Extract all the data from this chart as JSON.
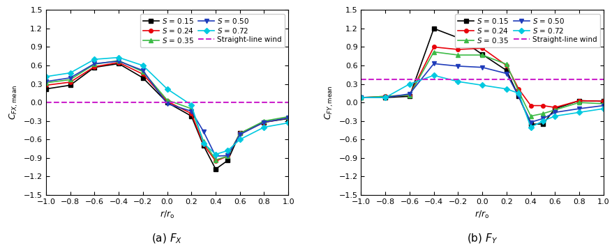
{
  "x_values": [
    -1.0,
    -0.8,
    -0.6,
    -0.4,
    -0.2,
    0.0,
    0.2,
    0.3,
    0.4,
    0.5,
    0.6,
    0.8,
    1.0
  ],
  "fx_S015": [
    0.22,
    0.28,
    0.57,
    0.63,
    0.4,
    0.0,
    -0.22,
    -0.7,
    -1.08,
    -0.94,
    -0.5,
    -0.32,
    -0.26
  ],
  "fx_S024": [
    0.28,
    0.33,
    0.58,
    0.65,
    0.46,
    0.02,
    -0.18,
    -0.68,
    -0.95,
    -0.87,
    -0.5,
    -0.32,
    -0.25
  ],
  "fx_S035": [
    0.32,
    0.37,
    0.62,
    0.68,
    0.5,
    0.04,
    -0.1,
    -0.63,
    -0.93,
    -0.87,
    -0.5,
    -0.3,
    -0.23
  ],
  "fx_S050": [
    0.34,
    0.4,
    0.63,
    0.67,
    0.52,
    -0.02,
    -0.14,
    -0.47,
    -0.87,
    -0.86,
    -0.52,
    -0.32,
    -0.25
  ],
  "fx_S072": [
    0.42,
    0.48,
    0.7,
    0.73,
    0.6,
    0.22,
    -0.04,
    -0.66,
    -0.84,
    -0.78,
    -0.6,
    -0.4,
    -0.33
  ],
  "fy_S015": [
    0.08,
    0.08,
    0.1,
    1.2,
    1.05,
    0.78,
    0.52,
    0.1,
    -0.35,
    -0.35,
    -0.1,
    0.03,
    0.02
  ],
  "fy_S024": [
    0.08,
    0.1,
    0.12,
    0.9,
    0.86,
    0.88,
    0.6,
    0.22,
    -0.05,
    -0.05,
    -0.08,
    0.03,
    0.02
  ],
  "fy_S035": [
    0.08,
    0.1,
    0.12,
    0.82,
    0.77,
    0.77,
    0.62,
    0.18,
    -0.22,
    -0.18,
    -0.12,
    0.0,
    -0.02
  ],
  "fy_S050": [
    0.08,
    0.08,
    0.14,
    0.63,
    0.59,
    0.57,
    0.47,
    0.1,
    -0.32,
    -0.26,
    -0.16,
    -0.1,
    -0.05
  ],
  "fy_S072": [
    0.08,
    0.08,
    0.3,
    0.44,
    0.34,
    0.28,
    0.22,
    0.15,
    -0.4,
    -0.3,
    -0.22,
    -0.16,
    -0.1
  ],
  "straight_line_fx": 0.0,
  "straight_line_fy": 0.37,
  "colors": {
    "S015": "#000000",
    "S024": "#e8000a",
    "S035": "#3dbb47",
    "S050": "#1f3cba",
    "S072": "#00c9e0"
  },
  "markers": {
    "S015": "s",
    "S024": "o",
    "S035": "^",
    "S050": "v",
    "S072": "D"
  },
  "labels": {
    "S015": "$S$ = 0.15",
    "S024": "$S$ = 0.24",
    "S035": "$S$ = 0.35",
    "S050": "$S$ = 0.50",
    "S072": "$S$ = 0.72",
    "straight": "Straight-line wind"
  },
  "ylabel_fx": "$C_{FX,\\mathrm{mean}}$",
  "ylabel_fy": "$C_{FY,\\mathrm{mean}}$",
  "xlabel": "$r/r_{\\mathrm{o}}$",
  "title_a": "(a) $F_X$",
  "title_b": "(b) $F_Y$",
  "ylim": [
    -1.5,
    1.5
  ],
  "xlim": [
    -1.0,
    1.0
  ],
  "yticks": [
    -1.5,
    -1.2,
    -0.9,
    -0.6,
    -0.3,
    0.0,
    0.3,
    0.6,
    0.9,
    1.2,
    1.5
  ],
  "xticks": [
    -1.0,
    -0.8,
    -0.6,
    -0.4,
    -0.2,
    0.0,
    0.2,
    0.4,
    0.6,
    0.8,
    1.0
  ]
}
